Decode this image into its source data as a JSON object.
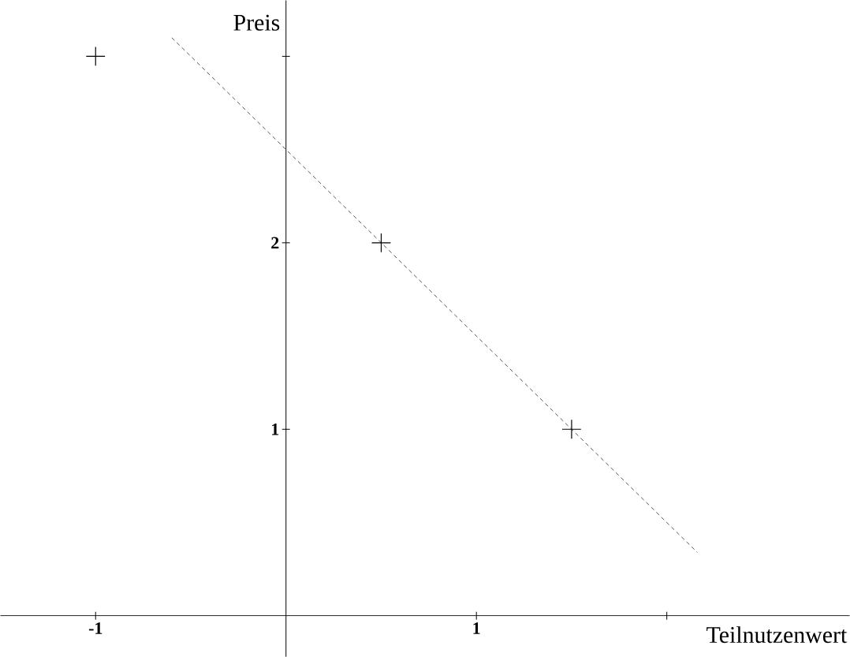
{
  "chart_data": {
    "type": "scatter",
    "xlabel": "Teilnutzenwert",
    "ylabel": "Preis",
    "xlim": [
      -1.5,
      2.96
    ],
    "ylim": [
      -0.22,
      3.3
    ],
    "xticks": [
      -1,
      1,
      {
        "value": 2,
        "label": null
      }
    ],
    "yticks": [
      1,
      2,
      {
        "value": 3,
        "label": null
      }
    ],
    "series": [
      {
        "color": "#000000",
        "marker": "cross",
        "x": [
          -1,
          0.5,
          1.5
        ],
        "values": [
          3,
          2,
          1
        ]
      },
      {
        "type": "line",
        "color": "#555555",
        "line_style": "dashed",
        "marker": "none",
        "x": [
          -0.6,
          2.16
        ],
        "values": [
          3.1,
          0.34
        ]
      }
    ]
  }
}
